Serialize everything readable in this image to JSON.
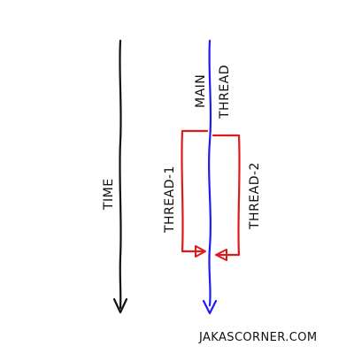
{
  "labels": {
    "time": "TIME",
    "main_line1": "MAIN",
    "main_line2": "THREAD",
    "thread1": "THREAD-1",
    "thread2": "THREAD-2",
    "credit": "JAKASCORNER.COM"
  },
  "colors": {
    "time_axis": "#111111",
    "main_thread": "#1d1df0",
    "side_threads": "#e01a1a",
    "text": "#111111"
  }
}
